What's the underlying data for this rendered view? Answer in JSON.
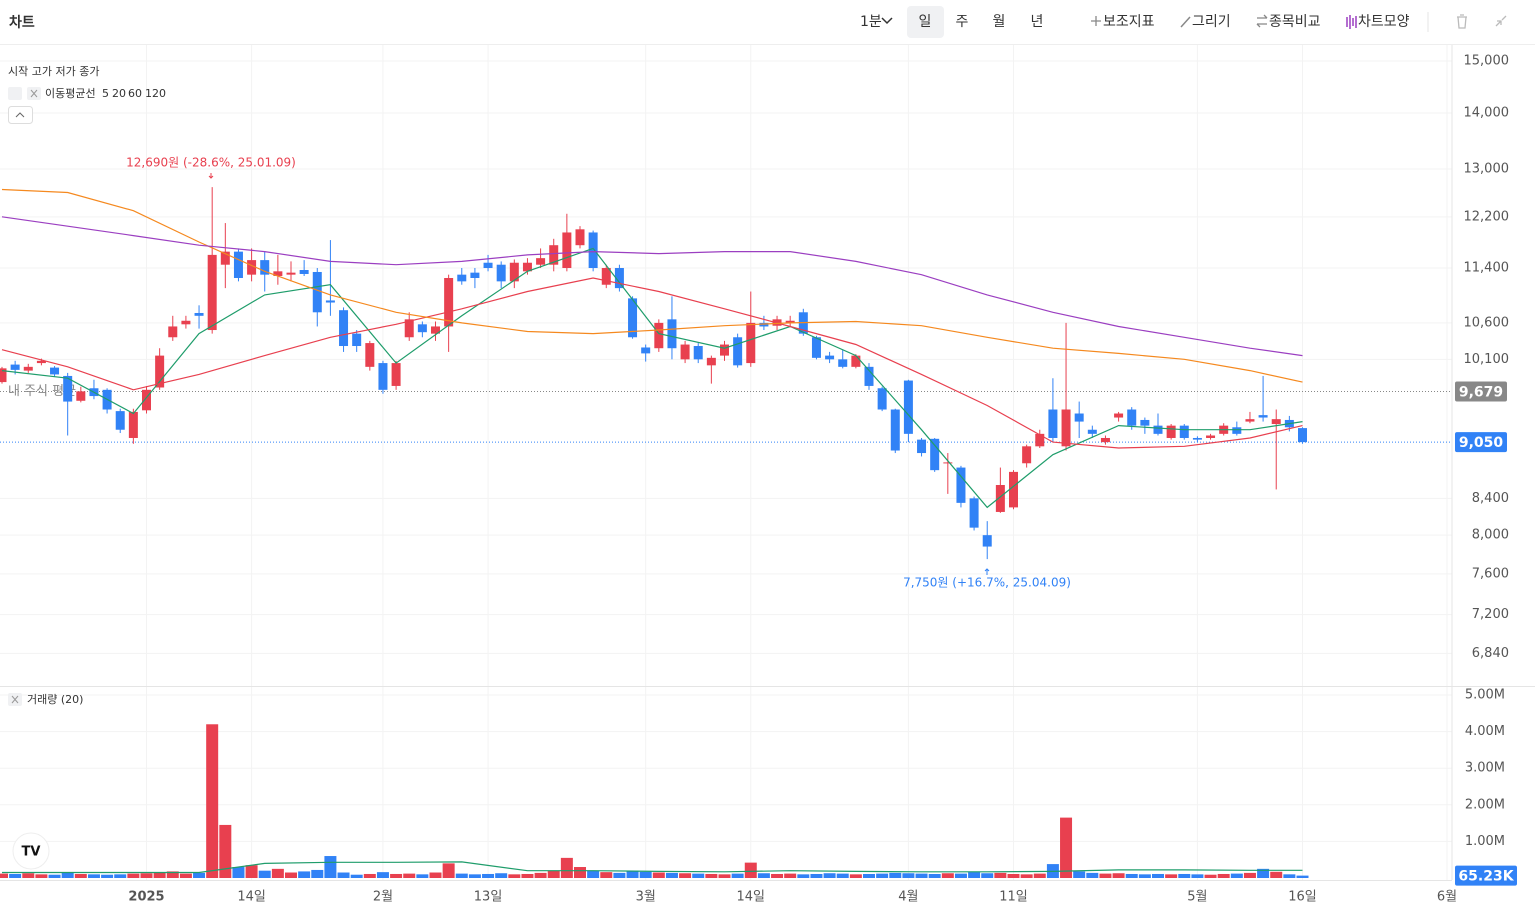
{
  "toolbar": {
    "title": "차트",
    "intervals": [
      "1분",
      "일",
      "주",
      "월",
      "년"
    ],
    "tools": [
      "보조지표",
      "그리기",
      "종목비교",
      "차트모양"
    ]
  },
  "chart_data": [
    {
      "type": "candlestick",
      "legend_title": "시작 고가 저가 종가",
      "indicator_name": "이동평균선",
      "log_scale": true,
      "grid": true,
      "up_color": "#e8404f",
      "down_color": "#3182f6",
      "ylim": [
        6550,
        15000
      ],
      "yticks": [
        {
          "value": 15000,
          "label": "15,000"
        },
        {
          "value": 14000,
          "label": "14,000"
        },
        {
          "value": 13000,
          "label": "13,000"
        },
        {
          "value": 12200,
          "label": "12,200"
        },
        {
          "value": 11400,
          "label": "11,400"
        },
        {
          "value": 10600,
          "label": "10,600"
        },
        {
          "value": 10100,
          "label": "10,100"
        },
        {
          "value": 8400,
          "label": "8,400"
        },
        {
          "value": 8000,
          "label": "8,000"
        },
        {
          "value": 7600,
          "label": "7,600"
        },
        {
          "value": 7200,
          "label": "7,200"
        },
        {
          "value": 6840,
          "label": "6,840"
        }
      ],
      "xlim": [
        0,
        110
      ],
      "xticks": [
        {
          "value": 11,
          "label": "2025"
        },
        {
          "value": 19,
          "label": "14일"
        },
        {
          "value": 29,
          "label": "2월"
        },
        {
          "value": 37,
          "label": "13일"
        },
        {
          "value": 49,
          "label": "3월"
        },
        {
          "value": 57,
          "label": "14일"
        },
        {
          "value": 69,
          "label": "4월"
        },
        {
          "value": 77,
          "label": "11일"
        },
        {
          "value": 91,
          "label": "5월"
        },
        {
          "value": 99,
          "label": "16일"
        },
        {
          "value": 110,
          "label": "6월"
        }
      ],
      "open": [
        9800,
        10030,
        9950,
        10050,
        9990,
        9880,
        9560,
        9720,
        9700,
        9430,
        9100,
        9440,
        9730,
        10400,
        10580,
        10740,
        10500,
        11450,
        11650,
        11300,
        11520,
        11280,
        11300,
        11370,
        11340,
        10920,
        10780,
        10450,
        10000,
        10050,
        9750,
        10400,
        10580,
        10450,
        10550,
        11300,
        11330,
        11480,
        11450,
        11200,
        11350,
        11450,
        11450,
        11400,
        11750,
        11950,
        11150,
        11400,
        10950,
        10260,
        10250,
        10650,
        10100,
        10280,
        10020,
        10150,
        10400,
        10050,
        10600,
        10560,
        10600,
        10750,
        10400,
        10150,
        10100,
        10000,
        10000,
        9720,
        9450,
        9820,
        9080,
        9090,
        8800,
        8750,
        8400,
        8000,
        8250,
        8300,
        8800,
        9000,
        9450,
        9000,
        9400,
        9200,
        9050,
        9350,
        9450,
        9320,
        9250,
        9100,
        9250,
        9100,
        9100,
        9150,
        9230,
        9300,
        9380,
        9270,
        9320,
        9220
      ],
      "high": [
        10000,
        10080,
        10040,
        10110,
        10010,
        9920,
        9740,
        9830,
        9720,
        9460,
        9460,
        9750,
        10250,
        10700,
        10700,
        10850,
        12690,
        12100,
        11700,
        11700,
        11650,
        11600,
        11500,
        11520,
        11400,
        11830,
        10820,
        10500,
        10350,
        10080,
        10080,
        10750,
        10620,
        10620,
        11300,
        11400,
        11400,
        11600,
        11500,
        11530,
        11550,
        11700,
        11850,
        12250,
        12050,
        11980,
        11450,
        11450,
        10980,
        10300,
        10650,
        10980,
        10350,
        10320,
        10150,
        10350,
        10450,
        11050,
        10700,
        10700,
        10700,
        10800,
        10420,
        10200,
        10230,
        10170,
        10050,
        9740,
        9460,
        9830,
        9100,
        9100,
        8920,
        8770,
        8420,
        8150,
        8750,
        8720,
        9020,
        9200,
        9850,
        10600,
        9550,
        9250,
        9130,
        9420,
        9480,
        9350,
        9400,
        9270,
        9270,
        9120,
        9150,
        9280,
        9300,
        9420,
        9880,
        9450,
        9370,
        9230
      ],
      "low": [
        9780,
        9900,
        9920,
        10020,
        9870,
        9130,
        9540,
        9580,
        9400,
        9160,
        9030,
        9400,
        9700,
        10350,
        10520,
        10520,
        10450,
        11100,
        11200,
        11200,
        11050,
        11150,
        11200,
        11280,
        10550,
        10700,
        10200,
        10200,
        9950,
        9650,
        9700,
        10350,
        10400,
        10350,
        10200,
        11150,
        11100,
        11350,
        11100,
        11100,
        11300,
        11400,
        11350,
        11350,
        11700,
        11350,
        11100,
        11050,
        10380,
        10070,
        10200,
        10100,
        10050,
        10050,
        9780,
        10080,
        9990,
        10000,
        10500,
        10500,
        10550,
        10420,
        10100,
        10050,
        9980,
        9980,
        9700,
        9430,
        8920,
        9050,
        8880,
        8700,
        8450,
        8300,
        8050,
        7750,
        8240,
        8280,
        8750,
        8980,
        9050,
        8950,
        9100,
        9100,
        9020,
        9300,
        9200,
        9150,
        9130,
        9080,
        9080,
        9050,
        9080,
        9130,
        9130,
        9280,
        9300,
        8500,
        9180,
        9030
      ],
      "close": [
        9980,
        9960,
        10000,
        10080,
        9900,
        9550,
        9680,
        9620,
        9450,
        9200,
        9420,
        9700,
        10150,
        10550,
        10630,
        10700,
        11600,
        11650,
        11250,
        11520,
        11300,
        11350,
        11330,
        11310,
        10750,
        10890,
        10280,
        10280,
        10320,
        9700,
        10050,
        10650,
        10470,
        10550,
        11250,
        11200,
        11250,
        11400,
        11200,
        11480,
        11480,
        11550,
        11750,
        11950,
        12000,
        11400,
        11400,
        11100,
        10400,
        10180,
        10600,
        10250,
        10300,
        10100,
        10120,
        10300,
        10020,
        10600,
        10550,
        10650,
        10630,
        10450,
        10120,
        10100,
        10000,
        10150,
        9750,
        9450,
        8950,
        9150,
        8920,
        8720,
        8810,
        8350,
        8080,
        7880,
        8550,
        8700,
        9000,
        9150,
        9100,
        9450,
        9300,
        9150,
        9100,
        9400,
        9250,
        9250,
        9150,
        9250,
        9100,
        9080,
        9130,
        9250,
        9150,
        9330,
        9350,
        9330,
        9230,
        9050
      ],
      "series": [
        {
          "name": "5",
          "color": "#1f9d6b",
          "x": [
            0,
            5,
            10,
            15,
            20,
            25,
            30,
            35,
            40,
            45,
            50,
            55,
            60,
            65,
            70,
            75,
            80,
            85,
            90,
            95,
            99
          ],
          "values": [
            9950,
            9850,
            9400,
            10450,
            11000,
            11150,
            10050,
            10700,
            11350,
            11700,
            10450,
            10250,
            10550,
            10150,
            9200,
            8300,
            8900,
            9250,
            9200,
            9200,
            9300
          ]
        },
        {
          "name": "20",
          "color": "#e8404f",
          "x": [
            0,
            5,
            10,
            15,
            20,
            25,
            30,
            35,
            40,
            45,
            50,
            55,
            60,
            65,
            70,
            75,
            80,
            85,
            90,
            95,
            99
          ],
          "values": [
            10230,
            10000,
            9700,
            9900,
            10150,
            10400,
            10580,
            10800,
            11050,
            11250,
            11050,
            10800,
            10550,
            10300,
            9900,
            9500,
            9050,
            8980,
            9000,
            9100,
            9250
          ]
        },
        {
          "name": "60",
          "color": "#f5891f",
          "x": [
            0,
            5,
            10,
            15,
            20,
            25,
            30,
            35,
            40,
            45,
            50,
            55,
            60,
            65,
            70,
            75,
            80,
            85,
            90,
            95,
            99
          ],
          "values": [
            12650,
            12600,
            12300,
            11800,
            11350,
            11000,
            10750,
            10600,
            10480,
            10450,
            10500,
            10560,
            10600,
            10620,
            10560,
            10400,
            10250,
            10180,
            10100,
            9950,
            9800
          ]
        },
        {
          "name": "120",
          "color": "#9b3fc1",
          "x": [
            0,
            5,
            10,
            15,
            20,
            25,
            30,
            35,
            40,
            45,
            50,
            55,
            60,
            65,
            70,
            75,
            80,
            85,
            90,
            95,
            99
          ],
          "values": [
            12200,
            12050,
            11900,
            11750,
            11650,
            11500,
            11450,
            11500,
            11600,
            11650,
            11620,
            11650,
            11650,
            11500,
            11300,
            11000,
            10750,
            10550,
            10400,
            10250,
            10150
          ]
        }
      ],
      "price_lines": [
        {
          "name": "내 주식 평균",
          "value": 9679,
          "label": "9,679",
          "color": "#888888"
        },
        {
          "value": 9050,
          "label": "9,050",
          "color": "#3182f6"
        }
      ],
      "annotations": [
        {
          "text": "12,690원 (-28.6%, 25.01.09)",
          "color": "#e8404f"
        },
        {
          "text": "7,750원 (+16.7%, 25.04.09)",
          "color": "#3182f6"
        }
      ]
    },
    {
      "type": "bar",
      "legend_title": "거래량 (20)",
      "grid": true,
      "ylim": [
        0,
        5000000
      ],
      "yticks": [
        {
          "value": 5000000,
          "label": "5.00M"
        },
        {
          "value": 4000000,
          "label": "4.00M"
        },
        {
          "value": 3000000,
          "label": "3.00M"
        },
        {
          "value": 2000000,
          "label": "2.00M"
        },
        {
          "value": 1000000,
          "label": "1.00M"
        }
      ],
      "values": [
        120000,
        110000,
        130000,
        100000,
        90000,
        160000,
        110000,
        100000,
        90000,
        100000,
        120000,
        130000,
        160000,
        180000,
        120000,
        140000,
        4200000,
        1450000,
        300000,
        350000,
        200000,
        250000,
        150000,
        180000,
        220000,
        600000,
        150000,
        90000,
        110000,
        160000,
        110000,
        120000,
        100000,
        150000,
        400000,
        120000,
        100000,
        110000,
        130000,
        100000,
        110000,
        140000,
        200000,
        550000,
        300000,
        200000,
        160000,
        140000,
        200000,
        170000,
        150000,
        140000,
        130000,
        120000,
        110000,
        100000,
        120000,
        420000,
        130000,
        110000,
        120000,
        100000,
        110000,
        130000,
        120000,
        100000,
        110000,
        120000,
        140000,
        130000,
        120000,
        110000,
        130000,
        120000,
        160000,
        130000,
        140000,
        110000,
        100000,
        120000,
        380000,
        1650000,
        180000,
        140000,
        120000,
        130000,
        110000,
        100000,
        110000,
        100000,
        110000,
        100000,
        90000,
        110000,
        120000,
        140000,
        250000,
        170000,
        100000,
        65230
      ],
      "current": {
        "value": 65230,
        "label": "65.23K",
        "color": "#3182f6"
      },
      "series": [
        {
          "color": "#1f9d6b",
          "x": [
            0,
            5,
            10,
            15,
            20,
            25,
            30,
            35,
            40,
            45,
            50,
            55,
            60,
            65,
            70,
            75,
            80,
            85,
            90,
            95,
            99
          ],
          "values": [
            150000,
            150000,
            150000,
            150000,
            400000,
            430000,
            430000,
            440000,
            200000,
            200000,
            180000,
            170000,
            200000,
            180000,
            170000,
            170000,
            180000,
            220000,
            220000,
            210000,
            210000
          ]
        }
      ]
    }
  ]
}
